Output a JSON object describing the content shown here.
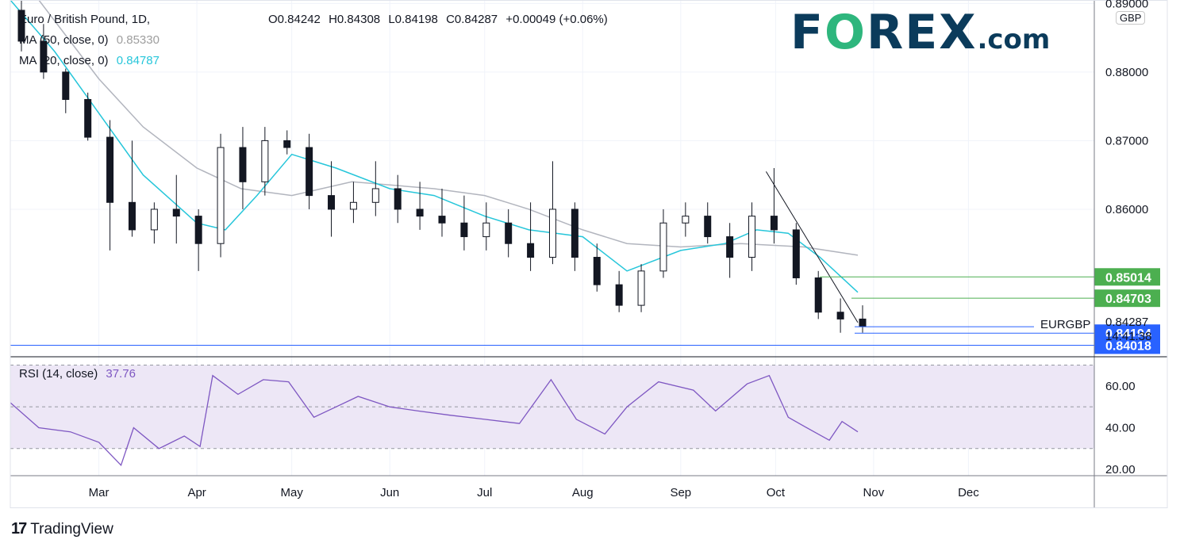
{
  "header": {
    "symbol_title": "Euro / British Pound, 1D, ",
    "ohlc": {
      "open_label": "O",
      "open": "0.84242",
      "high_label": "H",
      "high": "0.84308",
      "low_label": "L",
      "low": "0.84198",
      "close_label": "C",
      "close": "0.84287",
      "change": "+0.00049 (+0.06%)"
    },
    "ma50_label": "MA (50, close, 0)",
    "ma50_value": "0.85330",
    "ma20_label": "MA (20, close, 0)",
    "ma20_value": "0.84787",
    "rsi_label": "RSI (14, close)",
    "rsi_value": "37.76"
  },
  "branding": {
    "forex_prefix": "F",
    "forex_o": "O",
    "forex_suffix": "REX",
    "forex_com": ".com",
    "tradingview_label": "TradingView",
    "tradingview_mark": "17"
  },
  "currency": "GBP",
  "colors": {
    "up": "#131722",
    "down": "#131722",
    "ma20": "#26c6da",
    "ma50": "#b2b5be",
    "green_level": "#4caf50",
    "blue_level": "#2962ff",
    "rsi": "#7e57c2",
    "rsi_band": "#ede7f6"
  },
  "chart_data": [
    {
      "type": "candlestick",
      "symbol": "EURGBP",
      "interval": "1D",
      "ylim": [
        0.8385,
        0.8905
      ],
      "y_ticks": [
        "0.89000",
        "0.88000",
        "0.87000",
        "0.86000"
      ],
      "x_ticks": [
        "Mar",
        "Apr",
        "May",
        "Jun",
        "Jul",
        "Aug",
        "Sep",
        "Oct",
        "Nov",
        "Dec"
      ],
      "x_tick_dates": [
        "2022-03-01",
        "2022-04-01",
        "2022-05-01",
        "2022-06-01",
        "2022-07-01",
        "2022-08-01",
        "2022-09-01",
        "2022-10-01",
        "2022-11-01",
        "2022-12-01"
      ],
      "close_path": [
        [
          "2022-02-01",
          0.8385,
          0.846
        ],
        [
          "2022-02-08",
          0.8455,
          0.8575
        ],
        [
          "2022-02-15",
          0.8385,
          0.85
        ],
        [
          "2022-02-22",
          0.835,
          0.842
        ]
      ],
      "ohlc_weekly": [
        [
          "2022-02-01",
          0.889,
          0.8905,
          0.883,
          0.8845
        ],
        [
          "2022-02-08",
          0.8845,
          0.887,
          0.879,
          0.88
        ],
        [
          "2022-02-15",
          0.88,
          0.8805,
          0.874,
          0.876
        ],
        [
          "2022-02-22",
          0.876,
          0.877,
          0.87,
          0.8705
        ],
        [
          "2022-03-01",
          0.8705,
          0.873,
          0.854,
          0.861
        ],
        [
          "2022-03-08",
          0.861,
          0.87,
          0.856,
          0.857
        ],
        [
          "2022-03-15",
          0.857,
          0.861,
          0.855,
          0.86
        ],
        [
          "2022-03-22",
          0.86,
          0.865,
          0.855,
          0.859
        ],
        [
          "2022-03-29",
          0.859,
          0.86,
          0.851,
          0.855
        ],
        [
          "2022-04-05",
          0.855,
          0.871,
          0.853,
          0.869
        ],
        [
          "2022-04-12",
          0.869,
          0.872,
          0.86,
          0.864
        ],
        [
          "2022-04-19",
          0.864,
          0.872,
          0.862,
          0.87
        ],
        [
          "2022-04-26",
          0.87,
          0.8715,
          0.868,
          0.869
        ],
        [
          "2022-05-03",
          0.869,
          0.871,
          0.86,
          0.862
        ],
        [
          "2022-05-10",
          0.862,
          0.867,
          0.856,
          0.86
        ],
        [
          "2022-05-17",
          0.86,
          0.864,
          0.858,
          0.861
        ],
        [
          "2022-05-24",
          0.861,
          0.867,
          0.859,
          0.863
        ],
        [
          "2022-05-31",
          0.863,
          0.865,
          0.858,
          0.86
        ],
        [
          "2022-06-07",
          0.86,
          0.864,
          0.857,
          0.859
        ],
        [
          "2022-06-14",
          0.859,
          0.863,
          0.856,
          0.858
        ],
        [
          "2022-06-21",
          0.858,
          0.862,
          0.854,
          0.856
        ],
        [
          "2022-06-28",
          0.856,
          0.861,
          0.854,
          0.858
        ],
        [
          "2022-07-05",
          0.858,
          0.86,
          0.853,
          0.855
        ],
        [
          "2022-07-12",
          0.855,
          0.861,
          0.851,
          0.853
        ],
        [
          "2022-07-19",
          0.853,
          0.867,
          0.852,
          0.86
        ],
        [
          "2022-07-26",
          0.86,
          0.861,
          0.851,
          0.853
        ],
        [
          "2022-08-02",
          0.853,
          0.855,
          0.848,
          0.849
        ],
        [
          "2022-08-09",
          0.849,
          0.851,
          0.845,
          0.846
        ],
        [
          "2022-08-16",
          0.846,
          0.852,
          0.845,
          0.851
        ],
        [
          "2022-08-23",
          0.851,
          0.86,
          0.85,
          0.858
        ],
        [
          "2022-08-30",
          0.858,
          0.861,
          0.856,
          0.859
        ],
        [
          "2022-09-06",
          0.859,
          0.861,
          0.855,
          0.856
        ],
        [
          "2022-09-13",
          0.856,
          0.858,
          0.85,
          0.853
        ],
        [
          "2022-09-20",
          0.853,
          0.861,
          0.851,
          0.859
        ],
        [
          "2022-09-27",
          0.859,
          0.866,
          0.855,
          0.857
        ],
        [
          "2022-10-04",
          0.857,
          0.858,
          0.849,
          0.85
        ],
        [
          "2022-10-11",
          0.85,
          0.851,
          0.844,
          0.845
        ],
        [
          "2022-10-18",
          0.845,
          0.847,
          0.842,
          0.844
        ],
        [
          "2022-10-25",
          0.844,
          0.846,
          0.842,
          0.8429
        ]
      ],
      "ma20": [
        [
          "2022-02-01",
          0.8905
        ],
        [
          "2022-02-15",
          0.883
        ],
        [
          "2022-03-01",
          0.874
        ],
        [
          "2022-03-15",
          0.865
        ],
        [
          "2022-04-01",
          0.858
        ],
        [
          "2022-04-10",
          0.857
        ],
        [
          "2022-04-20",
          0.862
        ],
        [
          "2022-05-01",
          0.868
        ],
        [
          "2022-05-15",
          0.866
        ],
        [
          "2022-06-01",
          0.863
        ],
        [
          "2022-06-15",
          0.862
        ],
        [
          "2022-07-01",
          0.859
        ],
        [
          "2022-07-15",
          0.857
        ],
        [
          "2022-08-01",
          0.856
        ],
        [
          "2022-08-15",
          0.851
        ],
        [
          "2022-09-01",
          0.854
        ],
        [
          "2022-09-15",
          0.855
        ],
        [
          "2022-09-25",
          0.857
        ],
        [
          "2022-10-05",
          0.8565
        ],
        [
          "2022-10-15",
          0.853
        ],
        [
          "2022-10-27",
          0.8479
        ]
      ],
      "ma50": [
        [
          "2022-02-10",
          0.8905
        ],
        [
          "2022-03-01",
          0.879
        ],
        [
          "2022-03-15",
          0.872
        ],
        [
          "2022-04-01",
          0.866
        ],
        [
          "2022-04-15",
          0.863
        ],
        [
          "2022-05-01",
          0.862
        ],
        [
          "2022-05-20",
          0.864
        ],
        [
          "2022-06-15",
          0.863
        ],
        [
          "2022-07-01",
          0.862
        ],
        [
          "2022-07-15",
          0.86
        ],
        [
          "2022-08-01",
          0.857
        ],
        [
          "2022-08-15",
          0.855
        ],
        [
          "2022-09-01",
          0.8545
        ],
        [
          "2022-09-20",
          0.855
        ],
        [
          "2022-10-10",
          0.8545
        ],
        [
          "2022-10-27",
          0.8533
        ]
      ],
      "trendline": [
        [
          "2022-09-28",
          0.8655
        ],
        [
          "2022-10-27",
          0.8435
        ]
      ],
      "levels": [
        {
          "label": "0.85014",
          "value": 0.85014,
          "color": "#4caf50",
          "from": "2022-10-15"
        },
        {
          "label": "0.84703",
          "value": 0.84703,
          "color": "#4caf50",
          "from": "2022-10-25"
        },
        {
          "label": "0.84194",
          "value": 0.84194,
          "color": "#2962ff",
          "from": "2022-10-26"
        },
        {
          "label": "0.84018",
          "value": 0.84018,
          "color": "#2962ff",
          "from": "2022-02-01"
        }
      ],
      "last_price_label": "0.84287",
      "last_price_symbol": "EURGBP",
      "countdown": "14:41:38"
    },
    {
      "type": "line",
      "name": "RSI (14, close)",
      "ylim": [
        17,
        74
      ],
      "y_ticks": [
        "60.00",
        "40.00",
        "20.00"
      ],
      "bands": [
        30,
        50,
        70
      ],
      "points": [
        [
          "2022-02-01",
          52
        ],
        [
          "2022-02-10",
          40
        ],
        [
          "2022-02-20",
          38
        ],
        [
          "2022-03-01",
          33
        ],
        [
          "2022-03-08",
          22
        ],
        [
          "2022-03-12",
          40
        ],
        [
          "2022-03-20",
          30
        ],
        [
          "2022-03-28",
          36
        ],
        [
          "2022-04-02",
          31
        ],
        [
          "2022-04-06",
          65
        ],
        [
          "2022-04-14",
          56
        ],
        [
          "2022-04-22",
          63
        ],
        [
          "2022-04-30",
          62
        ],
        [
          "2022-05-08",
          45
        ],
        [
          "2022-05-15",
          50
        ],
        [
          "2022-05-22",
          55
        ],
        [
          "2022-06-01",
          50
        ],
        [
          "2022-06-10",
          48
        ],
        [
          "2022-06-20",
          46
        ],
        [
          "2022-07-01",
          44
        ],
        [
          "2022-07-12",
          42
        ],
        [
          "2022-07-22",
          63
        ],
        [
          "2022-07-30",
          44
        ],
        [
          "2022-08-08",
          37
        ],
        [
          "2022-08-15",
          50
        ],
        [
          "2022-08-25",
          62
        ],
        [
          "2022-09-05",
          58
        ],
        [
          "2022-09-12",
          48
        ],
        [
          "2022-09-22",
          61
        ],
        [
          "2022-09-29",
          65
        ],
        [
          "2022-10-05",
          45
        ],
        [
          "2022-10-12",
          39
        ],
        [
          "2022-10-18",
          34
        ],
        [
          "2022-10-22",
          43
        ],
        [
          "2022-10-27",
          38
        ]
      ]
    }
  ]
}
